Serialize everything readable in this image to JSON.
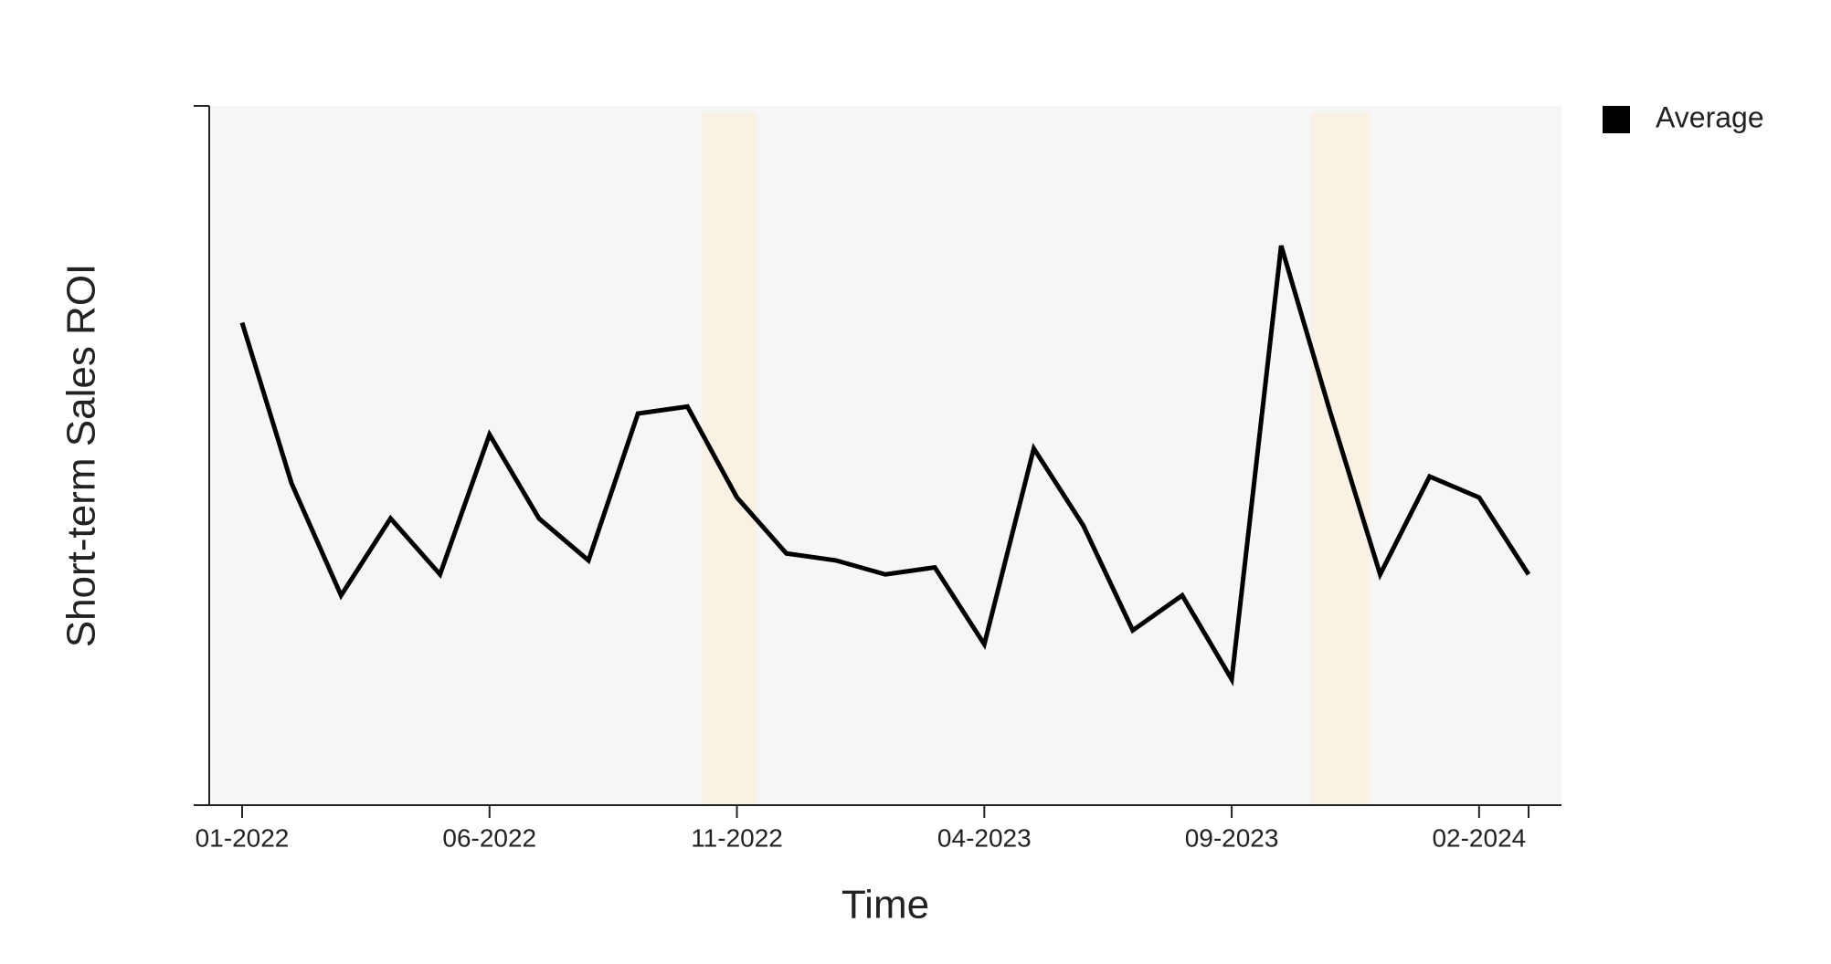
{
  "chart_data": {
    "type": "line",
    "y_label": "Short-term Sales ROI",
    "x_label": "Time",
    "categories": [
      "01-2022",
      null,
      null,
      null,
      null,
      "06-2022",
      null,
      null,
      null,
      null,
      "11-2022",
      null,
      null,
      null,
      null,
      "04-2023",
      null,
      null,
      null,
      null,
      "09-2023",
      null,
      null,
      null,
      null,
      "02-2024",
      null
    ],
    "series": [
      {
        "name": "Average",
        "color": "#000000",
        "values": [
          0.69,
          0.46,
          0.3,
          0.41,
          0.33,
          0.53,
          0.41,
          0.35,
          0.56,
          0.57,
          0.44,
          0.36,
          0.35,
          0.33,
          0.34,
          0.23,
          0.51,
          0.4,
          0.25,
          0.3,
          0.18,
          0.8,
          0.56,
          0.33,
          0.47,
          0.44,
          0.33
        ]
      }
    ],
    "ylim": [
      0,
      1
    ],
    "highlight_ranges": [
      [
        9.3,
        10.4
      ],
      [
        21.6,
        22.8
      ]
    ],
    "highlight_color": "#f8f1e4",
    "legend": "top-right"
  }
}
